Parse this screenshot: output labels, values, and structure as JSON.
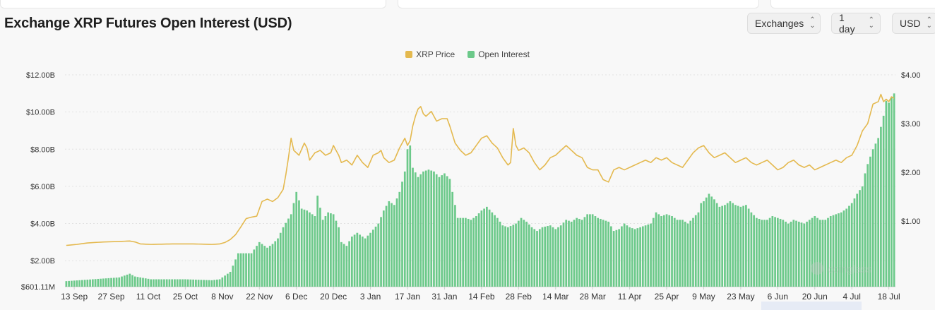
{
  "title": "Exchange XRP Futures Open Interest (USD)",
  "controls": {
    "exchanges": "Exchanges",
    "interval": "1 day",
    "currency": "USD"
  },
  "watermark": "coinglass",
  "colors": {
    "price": "#e4b94f",
    "oi": "#6cc98a",
    "grid": "#e2e2e2",
    "axis_text": "#333333"
  },
  "chart_data": {
    "type": "bar+line",
    "legend": [
      {
        "name": "XRP Price",
        "color": "#e4b94f",
        "kind": "line"
      },
      {
        "name": "Open Interest",
        "color": "#6cc98a",
        "kind": "bar"
      }
    ],
    "y_left": {
      "label": "",
      "min": 601110000,
      "max": 12000000000,
      "ticks": [
        "$601.11M",
        "$2.00B",
        "$4.00B",
        "$6.00B",
        "$8.00B",
        "$10.00B",
        "$12.00B"
      ]
    },
    "y_right": {
      "label": "",
      "min": 0,
      "max": 4.0,
      "ticks": [
        "$1.00",
        "$2.00",
        "$3.00",
        "$4.00"
      ]
    },
    "x_labels": [
      "13 Sep",
      "27 Sep",
      "11 Oct",
      "25 Oct",
      "8 Nov",
      "22 Nov",
      "6 Dec",
      "20 Dec",
      "3 Jan",
      "17 Jan",
      "31 Jan",
      "14 Feb",
      "28 Feb",
      "14 Mar",
      "28 Mar",
      "11 Apr",
      "25 Apr",
      "9 May",
      "23 May",
      "6 Jun",
      "20 Jun",
      "4 Jul",
      "18 Jul"
    ],
    "x_label_days": [
      3,
      17,
      31,
      45,
      59,
      73,
      87,
      101,
      115,
      129,
      143,
      157,
      171,
      185,
      199,
      213,
      227,
      241,
      255,
      269,
      283,
      297,
      311
    ],
    "x_days_total": 314,
    "oi_keypoints_billion": [
      [
        0,
        0.9
      ],
      [
        10,
        1.0
      ],
      [
        20,
        1.1
      ],
      [
        24,
        1.3
      ],
      [
        26,
        1.15
      ],
      [
        32,
        1.0
      ],
      [
        45,
        1.0
      ],
      [
        55,
        0.95
      ],
      [
        58,
        1.0
      ],
      [
        62,
        1.4
      ],
      [
        65,
        2.4
      ],
      [
        70,
        2.4
      ],
      [
        73,
        3.0
      ],
      [
        76,
        2.7
      ],
      [
        78,
        2.9
      ],
      [
        80,
        3.2
      ],
      [
        82,
        3.8
      ],
      [
        85,
        4.5
      ],
      [
        87,
        5.7
      ],
      [
        89,
        4.8
      ],
      [
        91,
        4.7
      ],
      [
        94,
        4.4
      ],
      [
        95,
        5.5
      ],
      [
        97,
        4.2
      ],
      [
        99,
        4.6
      ],
      [
        101,
        4.5
      ],
      [
        103,
        3.8
      ],
      [
        104,
        3.0
      ],
      [
        106,
        2.8
      ],
      [
        108,
        3.3
      ],
      [
        110,
        3.5
      ],
      [
        113,
        3.2
      ],
      [
        115,
        3.5
      ],
      [
        118,
        4.0
      ],
      [
        120,
        4.7
      ],
      [
        122,
        5.2
      ],
      [
        124,
        5.0
      ],
      [
        126,
        5.7
      ],
      [
        128,
        6.8
      ],
      [
        129,
        8.0
      ],
      [
        130,
        8.2
      ],
      [
        131,
        7.0
      ],
      [
        133,
        6.5
      ],
      [
        135,
        6.8
      ],
      [
        137,
        6.9
      ],
      [
        139,
        6.8
      ],
      [
        141,
        6.5
      ],
      [
        143,
        6.7
      ],
      [
        145,
        6.4
      ],
      [
        146,
        5.7
      ],
      [
        148,
        4.3
      ],
      [
        151,
        4.3
      ],
      [
        153,
        4.2
      ],
      [
        155,
        4.4
      ],
      [
        157,
        4.7
      ],
      [
        159,
        4.9
      ],
      [
        161,
        4.6
      ],
      [
        163,
        4.3
      ],
      [
        165,
        3.9
      ],
      [
        167,
        3.8
      ],
      [
        170,
        4.0
      ],
      [
        172,
        4.3
      ],
      [
        174,
        4.1
      ],
      [
        176,
        3.8
      ],
      [
        178,
        3.6
      ],
      [
        180,
        3.8
      ],
      [
        183,
        3.9
      ],
      [
        185,
        3.7
      ],
      [
        187,
        3.9
      ],
      [
        189,
        4.2
      ],
      [
        191,
        4.1
      ],
      [
        193,
        4.3
      ],
      [
        195,
        4.2
      ],
      [
        197,
        4.5
      ],
      [
        199,
        4.5
      ],
      [
        201,
        4.3
      ],
      [
        203,
        4.2
      ],
      [
        205,
        4.1
      ],
      [
        207,
        3.6
      ],
      [
        209,
        3.7
      ],
      [
        211,
        4.0
      ],
      [
        213,
        3.8
      ],
      [
        215,
        3.7
      ],
      [
        217,
        3.8
      ],
      [
        219,
        3.9
      ],
      [
        221,
        4.0
      ],
      [
        223,
        4.6
      ],
      [
        225,
        4.4
      ],
      [
        227,
        4.5
      ],
      [
        229,
        4.4
      ],
      [
        231,
        4.2
      ],
      [
        233,
        4.2
      ],
      [
        235,
        4.0
      ],
      [
        237,
        4.3
      ],
      [
        239,
        4.6
      ],
      [
        240,
        5.1
      ],
      [
        241,
        5.2
      ],
      [
        243,
        5.6
      ],
      [
        245,
        5.3
      ],
      [
        247,
        4.9
      ],
      [
        249,
        5.0
      ],
      [
        251,
        5.2
      ],
      [
        253,
        5.0
      ],
      [
        255,
        4.9
      ],
      [
        257,
        5.0
      ],
      [
        259,
        4.6
      ],
      [
        261,
        4.3
      ],
      [
        263,
        4.2
      ],
      [
        265,
        4.2
      ],
      [
        267,
        4.4
      ],
      [
        269,
        4.3
      ],
      [
        271,
        4.2
      ],
      [
        273,
        4.0
      ],
      [
        275,
        4.2
      ],
      [
        277,
        4.1
      ],
      [
        279,
        4.0
      ],
      [
        281,
        4.2
      ],
      [
        283,
        4.4
      ],
      [
        285,
        4.2
      ],
      [
        287,
        4.2
      ],
      [
        289,
        4.4
      ],
      [
        291,
        4.5
      ],
      [
        293,
        4.6
      ],
      [
        295,
        4.8
      ],
      [
        297,
        5.1
      ],
      [
        299,
        5.6
      ],
      [
        301,
        6.0
      ],
      [
        302,
        6.7
      ],
      [
        303,
        7.2
      ],
      [
        305,
        8.0
      ],
      [
        307,
        8.6
      ],
      [
        309,
        9.8
      ],
      [
        310,
        10.6
      ],
      [
        311,
        10.5
      ],
      [
        312,
        10.8
      ],
      [
        313,
        11.0
      ]
    ],
    "price_keypoints_usd": [
      [
        0,
        0.5
      ],
      [
        4,
        0.52
      ],
      [
        8,
        0.55
      ],
      [
        14,
        0.57
      ],
      [
        20,
        0.58
      ],
      [
        24,
        0.59
      ],
      [
        26,
        0.57
      ],
      [
        28,
        0.53
      ],
      [
        32,
        0.52
      ],
      [
        40,
        0.53
      ],
      [
        48,
        0.53
      ],
      [
        55,
        0.52
      ],
      [
        58,
        0.53
      ],
      [
        60,
        0.56
      ],
      [
        62,
        0.62
      ],
      [
        64,
        0.72
      ],
      [
        66,
        0.88
      ],
      [
        68,
        1.05
      ],
      [
        70,
        1.08
      ],
      [
        72,
        1.1
      ],
      [
        74,
        1.4
      ],
      [
        76,
        1.45
      ],
      [
        78,
        1.4
      ],
      [
        80,
        1.48
      ],
      [
        82,
        1.65
      ],
      [
        83,
        1.95
      ],
      [
        84,
        2.3
      ],
      [
        85,
        2.7
      ],
      [
        86,
        2.45
      ],
      [
        88,
        2.35
      ],
      [
        90,
        2.6
      ],
      [
        91,
        2.5
      ],
      [
        92,
        2.25
      ],
      [
        94,
        2.4
      ],
      [
        96,
        2.45
      ],
      [
        98,
        2.35
      ],
      [
        100,
        2.4
      ],
      [
        101,
        2.55
      ],
      [
        103,
        2.35
      ],
      [
        104,
        2.2
      ],
      [
        106,
        2.25
      ],
      [
        108,
        2.15
      ],
      [
        110,
        2.35
      ],
      [
        112,
        2.2
      ],
      [
        114,
        2.1
      ],
      [
        116,
        2.35
      ],
      [
        118,
        2.4
      ],
      [
        119,
        2.45
      ],
      [
        120,
        2.3
      ],
      [
        122,
        2.2
      ],
      [
        124,
        2.25
      ],
      [
        126,
        2.5
      ],
      [
        127,
        2.6
      ],
      [
        128,
        2.7
      ],
      [
        129,
        2.55
      ],
      [
        130,
        2.65
      ],
      [
        131,
        2.95
      ],
      [
        132,
        3.15
      ],
      [
        133,
        3.3
      ],
      [
        134,
        3.35
      ],
      [
        135,
        3.2
      ],
      [
        136,
        3.15
      ],
      [
        138,
        3.25
      ],
      [
        140,
        3.05
      ],
      [
        142,
        3.1
      ],
      [
        144,
        3.1
      ],
      [
        145,
        2.95
      ],
      [
        147,
        2.6
      ],
      [
        149,
        2.45
      ],
      [
        151,
        2.35
      ],
      [
        153,
        2.4
      ],
      [
        155,
        2.55
      ],
      [
        157,
        2.7
      ],
      [
        159,
        2.75
      ],
      [
        161,
        2.6
      ],
      [
        163,
        2.5
      ],
      [
        165,
        2.3
      ],
      [
        167,
        2.15
      ],
      [
        168,
        2.2
      ],
      [
        169,
        2.9
      ],
      [
        170,
        2.55
      ],
      [
        171,
        2.45
      ],
      [
        173,
        2.5
      ],
      [
        175,
        2.4
      ],
      [
        177,
        2.2
      ],
      [
        179,
        2.05
      ],
      [
        181,
        2.15
      ],
      [
        183,
        2.3
      ],
      [
        185,
        2.35
      ],
      [
        187,
        2.45
      ],
      [
        189,
        2.55
      ],
      [
        191,
        2.45
      ],
      [
        193,
        2.35
      ],
      [
        195,
        2.3
      ],
      [
        197,
        2.1
      ],
      [
        199,
        2.05
      ],
      [
        201,
        2.05
      ],
      [
        203,
        1.85
      ],
      [
        205,
        1.8
      ],
      [
        207,
        2.05
      ],
      [
        209,
        2.1
      ],
      [
        211,
        2.05
      ],
      [
        213,
        2.1
      ],
      [
        215,
        2.15
      ],
      [
        217,
        2.2
      ],
      [
        219,
        2.25
      ],
      [
        221,
        2.2
      ],
      [
        223,
        2.3
      ],
      [
        225,
        2.25
      ],
      [
        227,
        2.3
      ],
      [
        229,
        2.2
      ],
      [
        231,
        2.15
      ],
      [
        233,
        2.1
      ],
      [
        235,
        2.25
      ],
      [
        237,
        2.4
      ],
      [
        239,
        2.5
      ],
      [
        241,
        2.55
      ],
      [
        243,
        2.4
      ],
      [
        245,
        2.3
      ],
      [
        247,
        2.35
      ],
      [
        249,
        2.4
      ],
      [
        251,
        2.3
      ],
      [
        253,
        2.2
      ],
      [
        255,
        2.25
      ],
      [
        257,
        2.3
      ],
      [
        259,
        2.2
      ],
      [
        261,
        2.15
      ],
      [
        263,
        2.2
      ],
      [
        265,
        2.25
      ],
      [
        267,
        2.15
      ],
      [
        269,
        2.05
      ],
      [
        271,
        2.1
      ],
      [
        273,
        2.2
      ],
      [
        275,
        2.25
      ],
      [
        277,
        2.15
      ],
      [
        279,
        2.1
      ],
      [
        281,
        2.15
      ],
      [
        283,
        2.05
      ],
      [
        285,
        2.1
      ],
      [
        287,
        2.15
      ],
      [
        289,
        2.2
      ],
      [
        291,
        2.25
      ],
      [
        293,
        2.2
      ],
      [
        295,
        2.3
      ],
      [
        297,
        2.35
      ],
      [
        299,
        2.55
      ],
      [
        301,
        2.85
      ],
      [
        303,
        3.0
      ],
      [
        305,
        3.4
      ],
      [
        307,
        3.45
      ],
      [
        308,
        3.6
      ],
      [
        309,
        3.45
      ],
      [
        310,
        3.5
      ],
      [
        311,
        3.45
      ],
      [
        312,
        3.55
      ],
      [
        313,
        3.52
      ]
    ]
  }
}
